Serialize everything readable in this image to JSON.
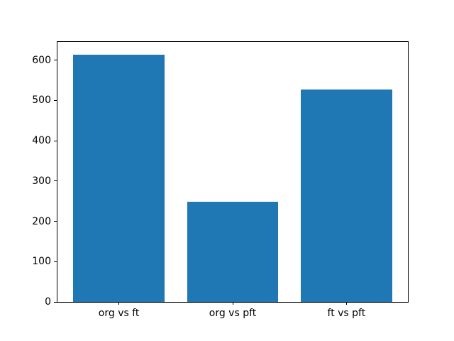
{
  "figure": {
    "background": "#ffffff",
    "spine_color": "#000000",
    "text_color": "#000000"
  },
  "chart_data": {
    "type": "bar",
    "title": "",
    "xlabel": "",
    "ylabel": "",
    "categories": [
      "org vs ft",
      "org vs pft",
      "ft vs pft"
    ],
    "values": [
      614,
      248,
      527
    ],
    "bar_color": "#1f77b4",
    "yticks": [
      0,
      100,
      200,
      300,
      400,
      500,
      600
    ],
    "ylim": [
      0,
      645
    ],
    "xlim": [
      -0.54,
      2.54
    ],
    "bar_width_units": 0.8,
    "grid": false,
    "legend_position": "none"
  }
}
